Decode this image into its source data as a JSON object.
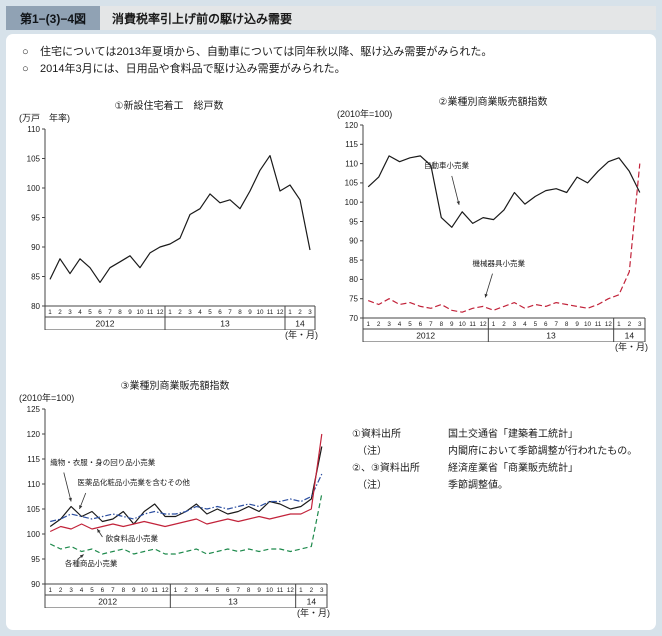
{
  "header": {
    "figure_no": "第1−(3)−4図",
    "title": "消費税率引上げ前の駆け込み需要"
  },
  "bullets": [
    {
      "marker": "○",
      "text": "住宅については2013年夏頃から、自動車については同年秋以降、駆け込み需要がみられた。"
    },
    {
      "marker": "○",
      "text": "2014年3月には、日用品や食料品で駆け込み需要がみられた。"
    }
  ],
  "x_axis": {
    "groups": [
      {
        "label": "2012",
        "months": 12
      },
      {
        "label": "13",
        "months": 12
      },
      {
        "label": "14",
        "months": 3
      }
    ]
  },
  "chart_data": [
    {
      "type": "line",
      "title": "①新設住宅着工　総戸数",
      "unit_label": "(万戸　年率)",
      "xlabel": "(年・月)",
      "ylim": [
        80,
        110
      ],
      "yticks": [
        80,
        85,
        90,
        95,
        100,
        105,
        110
      ],
      "grid": false,
      "series": [
        {
          "name": "新設住宅着工　総戸数",
          "color": "#1a1a1a",
          "dash": "none",
          "values": [
            84.5,
            88,
            85.5,
            88,
            86.5,
            84,
            86.5,
            87.5,
            88.5,
            86.5,
            89,
            90,
            90.5,
            91.5,
            95.5,
            96.5,
            99,
            97.5,
            98,
            96.5,
            99.5,
            103,
            105.5,
            99.5,
            100.5,
            98,
            89.5
          ]
        }
      ],
      "annotations": []
    },
    {
      "type": "line",
      "title": "②業種別商業販売額指数",
      "unit_label": "(2010年=100)",
      "xlabel": "(年・月)",
      "ylim": [
        70,
        120
      ],
      "yticks": [
        70,
        75,
        80,
        85,
        90,
        95,
        100,
        105,
        110,
        115,
        120
      ],
      "grid": false,
      "series": [
        {
          "name": "自動車小売業",
          "color": "#1a1a1a",
          "dash": "none",
          "values": [
            104,
            106.5,
            112,
            110.5,
            111.5,
            112,
            109.5,
            96,
            93.5,
            97.5,
            94.5,
            96,
            95.5,
            98,
            102.5,
            99.5,
            101.5,
            103,
            103.5,
            102.5,
            106.5,
            105,
            108,
            110.5,
            111.5,
            108,
            102.5
          ]
        },
        {
          "name": "機械器具小売業",
          "color": "#c2233a",
          "dash": "6,3",
          "values": [
            74.5,
            73.5,
            75,
            73.5,
            74,
            73,
            72.5,
            73.5,
            72,
            71.5,
            72.5,
            73,
            72,
            73,
            74,
            72.5,
            73.5,
            73,
            74,
            73.5,
            73,
            72.5,
            73.5,
            75,
            76,
            82,
            110
          ]
        }
      ],
      "annotations": [
        {
          "text": "自動車小売業",
          "anchor": "middle",
          "label": [
            7.5,
            108.8
          ],
          "arrow": {
            "from": [
              8.0,
              106.8
            ],
            "to": [
              8.7,
              99.3
            ]
          }
        },
        {
          "text": "機械器具小売業",
          "anchor": "middle",
          "label": [
            12.5,
            83.5
          ],
          "arrow": {
            "from": [
              11.9,
              81.5
            ],
            "to": [
              11.2,
              75.3
            ]
          }
        }
      ]
    },
    {
      "type": "line",
      "title": "③業種別商業販売額指数",
      "unit_label": "(2010年=100)",
      "xlabel": "(年・月)",
      "ylim": [
        90,
        125
      ],
      "yticks": [
        90,
        95,
        100,
        105,
        110,
        115,
        120,
        125
      ],
      "grid": false,
      "series": [
        {
          "name": "織物・衣服・身の回り品小売業",
          "color": "#1a1a1a",
          "dash": "none",
          "values": [
            101.5,
            103,
            105.5,
            103.5,
            104.5,
            102.5,
            103,
            104.5,
            102,
            104.5,
            106,
            103.5,
            103.5,
            104.5,
            106,
            104,
            105,
            104,
            104.5,
            105.5,
            104.5,
            106.5,
            106,
            105,
            105.5,
            107,
            117.5
          ]
        },
        {
          "name": "医薬品化粧品小売業を含むその他",
          "color": "#2b4ea0",
          "dash": "6,2,1.5,2",
          "values": [
            102.5,
            103,
            104,
            103.5,
            103,
            103.5,
            104,
            103.5,
            103,
            104,
            104.5,
            104,
            104,
            104.5,
            105.5,
            105,
            105.5,
            105,
            105.5,
            106,
            105.5,
            106.5,
            106.5,
            107,
            106.5,
            107.5,
            112
          ]
        },
        {
          "name": "飲食料品小売業",
          "color": "#c2233a",
          "dash": "none",
          "values": [
            100.5,
            101.5,
            101,
            102,
            101,
            101.5,
            102,
            101.5,
            102,
            102.5,
            102,
            101.5,
            102,
            102.5,
            103,
            102,
            102.5,
            103,
            102.5,
            103,
            103.5,
            103,
            103.5,
            104,
            104,
            105,
            120
          ]
        },
        {
          "name": "各種商品小売業",
          "color": "#1e8a4c",
          "dash": "5,3",
          "values": [
            98,
            97,
            97.5,
            96.5,
            97,
            96,
            96.5,
            97,
            96,
            96.5,
            97,
            96,
            96,
            96.5,
            97,
            96,
            96.5,
            97,
            96.5,
            97,
            96.5,
            97,
            97,
            96.5,
            97,
            97.5,
            108
          ]
        }
      ],
      "annotations": [
        {
          "text": "織物・衣服・身の回り品小売業",
          "anchor": "start",
          "label": [
            0.0,
            113.8
          ],
          "arrow": {
            "from": [
              1.3,
              112.3
            ],
            "to": [
              2.0,
              106.5
            ]
          }
        },
        {
          "text": "医薬品化粧品小売業を含むその他",
          "anchor": "start",
          "label": [
            2.6,
            109.8
          ],
          "arrow": {
            "from": [
              3.4,
              108.2
            ],
            "to": [
              2.8,
              105.0
            ]
          }
        },
        {
          "text": "飲食料品小売業",
          "anchor": "start",
          "label": [
            5.3,
            98.6
          ],
          "arrow": {
            "from": [
              5.0,
              99.4
            ],
            "to": [
              4.5,
              101.0
            ]
          }
        },
        {
          "text": "各種商品小売業",
          "anchor": "start",
          "label": [
            1.4,
            93.6
          ],
          "arrow": {
            "from": [
              2.6,
              94.9
            ],
            "to": [
              3.2,
              95.9
            ]
          }
        }
      ]
    }
  ],
  "notes": [
    {
      "label": "①資料出所",
      "text": "国土交通省「建築着工統計」"
    },
    {
      "label": "　（注）",
      "text": "内閣府において季節調整が行われたもの。"
    },
    {
      "label": "②、③資料出所",
      "text": "経済産業省「商業販売統計」"
    },
    {
      "label": "　（注）",
      "text": "季節調整値。"
    }
  ]
}
